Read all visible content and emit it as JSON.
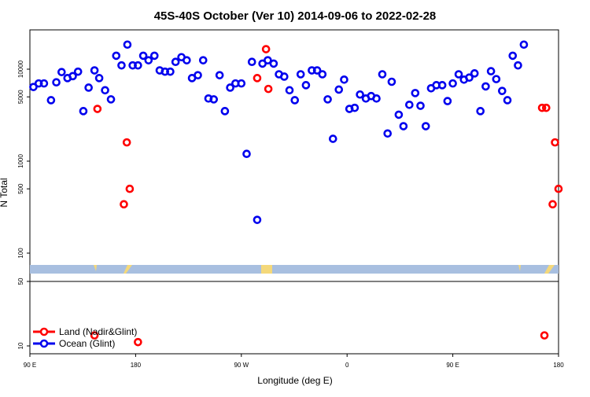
{
  "chart_data": {
    "type": "scatter",
    "title": "45S-40S October (Ver 10)   2014-09-06 to 2022-02-28",
    "xlabel": "Longitude (deg E)",
    "ylabel": "N Total",
    "x_ticks": [
      "90 E",
      "180",
      "90 W",
      "0",
      "90 E",
      "180"
    ],
    "x_tick_values": [
      90,
      180,
      270,
      360,
      450,
      540
    ],
    "xlim": [
      90,
      540
    ],
    "y_scale": "log",
    "y_ticks_upper": [
      "100",
      "500",
      "1000",
      "5000",
      "10000"
    ],
    "y_tick_values_upper": [
      100,
      500,
      1000,
      5000,
      10000
    ],
    "y_ticks_lower": [
      "10",
      "50"
    ],
    "y_tick_values_lower": [
      10,
      50
    ],
    "legend_position": "bottom-left",
    "series": [
      {
        "name": "Land (Nadir&Glint)",
        "color": "#ff0000",
        "points": [
          [
            147.5,
            3700
          ],
          [
            170,
            340
          ],
          [
            172.5,
            1600
          ],
          [
            175,
            500
          ],
          [
            283.5,
            8000
          ],
          [
            291,
            16500
          ],
          [
            293,
            6100
          ],
          [
            526,
            3800
          ],
          [
            529.5,
            3800
          ],
          [
            537,
            1600
          ],
          [
            535,
            340
          ],
          [
            540,
            500
          ]
        ]
      },
      {
        "name": "Ocean (Glint)",
        "color": "#0000ee",
        "points": [
          [
            93,
            6400
          ],
          [
            97.5,
            7000
          ],
          [
            102,
            7000
          ],
          [
            108,
            4600
          ],
          [
            112.5,
            7200
          ],
          [
            117,
            9300
          ],
          [
            122,
            8000
          ],
          [
            126.5,
            8400
          ],
          [
            131,
            9400
          ],
          [
            135.5,
            3500
          ],
          [
            140,
            6300
          ],
          [
            145,
            9700
          ],
          [
            149,
            8000
          ],
          [
            154,
            5900
          ],
          [
            159,
            4700
          ],
          [
            163.5,
            14000
          ],
          [
            168,
            11000
          ],
          [
            173,
            18500
          ],
          [
            177.5,
            11000
          ],
          [
            182,
            11000
          ],
          [
            186.5,
            14000
          ],
          [
            191,
            12500
          ],
          [
            196,
            14000
          ],
          [
            200.5,
            9700
          ],
          [
            205,
            9400
          ],
          [
            209.5,
            9400
          ],
          [
            214,
            12000
          ],
          [
            219,
            13500
          ],
          [
            223.5,
            12500
          ],
          [
            228,
            8000
          ],
          [
            233,
            8600
          ],
          [
            237.5,
            12500
          ],
          [
            242,
            4800
          ],
          [
            246.5,
            4700
          ],
          [
            251.5,
            8600
          ],
          [
            256,
            3500
          ],
          [
            260.5,
            6300
          ],
          [
            265,
            7000
          ],
          [
            270,
            7000
          ],
          [
            274.5,
            1200
          ],
          [
            279,
            12000
          ],
          [
            283.5,
            230
          ],
          [
            288,
            11500
          ],
          [
            292.5,
            12500
          ],
          [
            297.5,
            11500
          ],
          [
            302,
            8800
          ],
          [
            306.5,
            8300
          ],
          [
            311,
            5900
          ],
          [
            315.5,
            4600
          ],
          [
            320.5,
            8800
          ],
          [
            325,
            6700
          ],
          [
            330,
            9700
          ],
          [
            334.5,
            9700
          ],
          [
            339,
            8800
          ],
          [
            343.5,
            4700
          ],
          [
            348,
            1750
          ],
          [
            353,
            6000
          ],
          [
            357.5,
            7700
          ],
          [
            362,
            3700
          ],
          [
            366.5,
            3800
          ],
          [
            371,
            5300
          ],
          [
            376,
            4800
          ],
          [
            380.5,
            5100
          ],
          [
            385,
            4800
          ],
          [
            390,
            8800
          ],
          [
            394.5,
            2000
          ],
          [
            398,
            7300
          ],
          [
            404,
            3200
          ],
          [
            408,
            2400
          ],
          [
            413,
            4100
          ],
          [
            418,
            5500
          ],
          [
            422.5,
            4000
          ],
          [
            427,
            2400
          ],
          [
            431.5,
            6200
          ],
          [
            436,
            6700
          ],
          [
            441,
            6700
          ],
          [
            445.5,
            4500
          ],
          [
            450,
            7000
          ],
          [
            455,
            8800
          ],
          [
            459.5,
            7700
          ],
          [
            464,
            8100
          ],
          [
            468.5,
            9000
          ],
          [
            473.5,
            3500
          ],
          [
            478,
            6500
          ],
          [
            482.5,
            9500
          ],
          [
            487,
            7800
          ],
          [
            492,
            5800
          ],
          [
            496.5,
            4600
          ],
          [
            501,
            14000
          ],
          [
            505.5,
            11000
          ],
          [
            510.5,
            18500
          ]
        ]
      }
    ],
    "lower_panel_points": [
      {
        "series": "Land (Nadir&Glint)",
        "x": 145,
        "y": 13
      },
      {
        "series": "Land (Nadir&Glint)",
        "x": 182,
        "y": 11
      },
      {
        "series": "Land (Nadir&Glint)",
        "x": 528,
        "y": 13
      }
    ]
  }
}
